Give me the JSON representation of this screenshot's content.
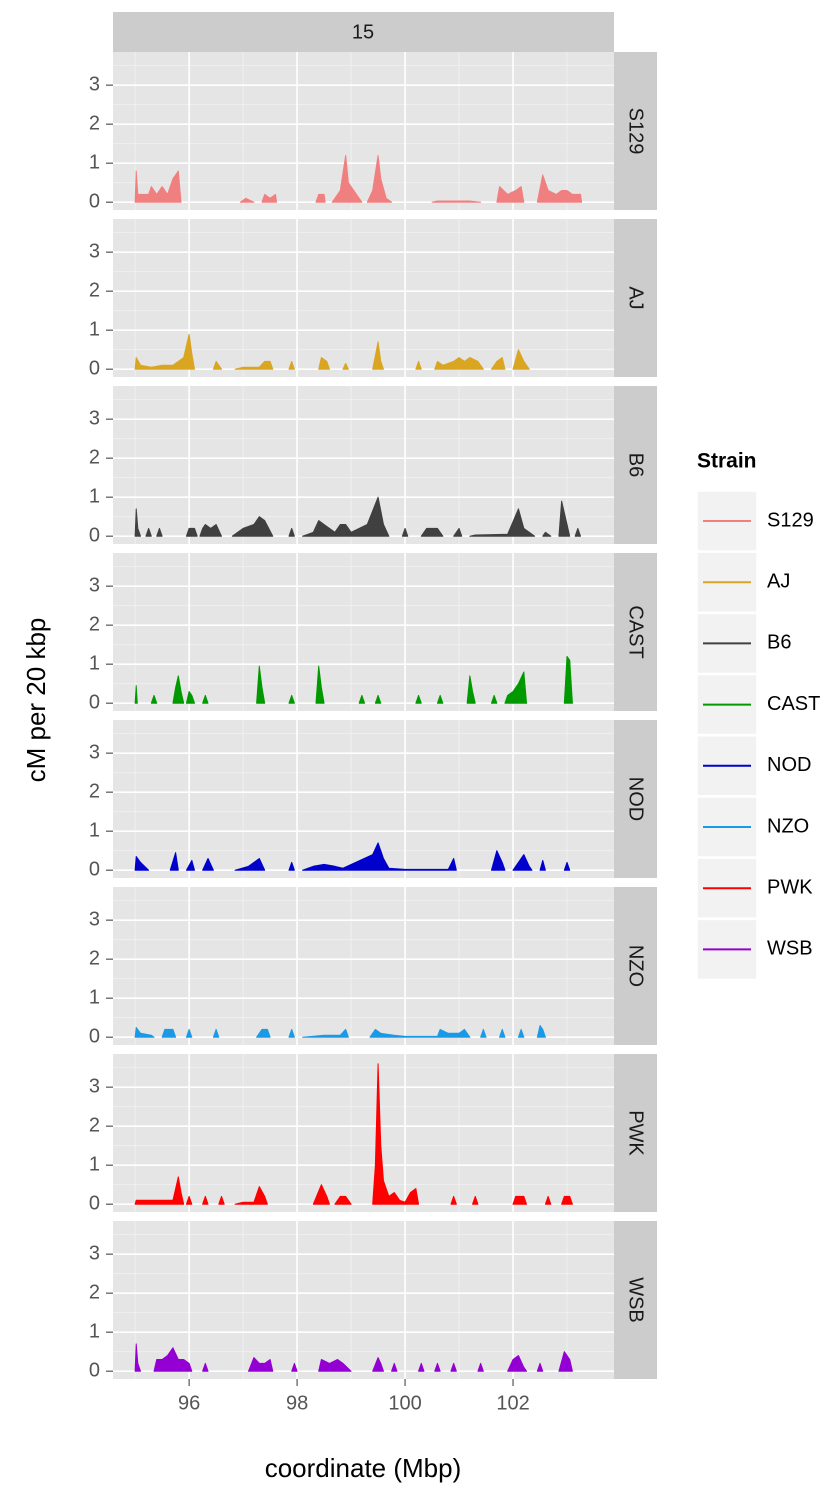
{
  "chart_data": {
    "type": "area",
    "facet_label": "15",
    "xlabel": "coordinate (Mbp)",
    "ylabel": "cM per 20 kbp",
    "legend_title": "Strain",
    "legend_position": "right",
    "grid": true,
    "xlim": [
      94.59,
      103.87
    ],
    "ylim": [
      -0.2,
      3.85
    ],
    "xticks": [
      96,
      98,
      100,
      102
    ],
    "yticks": [
      0,
      1,
      2,
      3
    ],
    "series": [
      {
        "name": "S129",
        "color": "#f08080",
        "x": [
          95.0,
          95.02,
          95.05,
          95.25,
          95.3,
          95.4,
          95.5,
          95.6,
          95.7,
          95.8,
          95.85,
          null,
          96.95,
          97.05,
          97.2,
          null,
          97.35,
          97.4,
          97.5,
          97.6,
          97.62,
          null,
          98.35,
          98.4,
          98.5,
          98.52,
          null,
          98.65,
          98.8,
          98.9,
          98.95,
          99.1,
          99.2,
          null,
          99.3,
          99.4,
          99.5,
          99.55,
          99.65,
          99.75,
          null,
          100.5,
          100.6,
          101.2,
          101.4,
          null,
          101.7,
          101.75,
          101.9,
          102.05,
          102.15,
          102.2,
          null,
          102.45,
          102.55,
          102.65,
          102.8,
          102.9,
          103.0,
          103.1,
          103.25,
          103.27
        ],
        "values": [
          0,
          0.8,
          0.2,
          0.2,
          0.4,
          0.2,
          0.4,
          0.2,
          0.6,
          0.8,
          0,
          null,
          0,
          0.1,
          0,
          null,
          0,
          0.2,
          0.1,
          0.2,
          0,
          null,
          0,
          0.2,
          0.2,
          0,
          null,
          0,
          0.3,
          1.2,
          0.5,
          0.2,
          0,
          null,
          0,
          0.3,
          1.2,
          0.6,
          0.1,
          0,
          null,
          0,
          0.03,
          0.03,
          0,
          null,
          0,
          0.4,
          0.2,
          0.3,
          0.4,
          0,
          null,
          0,
          0.7,
          0.3,
          0.2,
          0.3,
          0.3,
          0.2,
          0.2,
          0
        ]
      },
      {
        "name": "AJ",
        "color": "#daa520",
        "x": [
          95.0,
          95.02,
          95.1,
          95.3,
          95.5,
          95.7,
          95.9,
          96.0,
          96.05,
          96.1,
          null,
          96.45,
          96.5,
          96.6,
          null,
          96.85,
          97.0,
          97.3,
          97.4,
          97.5,
          97.55,
          null,
          97.85,
          97.9,
          97.95,
          null,
          98.4,
          98.45,
          98.55,
          98.6,
          null,
          98.85,
          98.9,
          98.95,
          null,
          99.4,
          99.5,
          99.55,
          99.6,
          null,
          100.2,
          100.25,
          100.3,
          null,
          100.55,
          100.6,
          100.7,
          100.9,
          101.0,
          101.1,
          101.2,
          101.35,
          101.45,
          null,
          101.6,
          101.7,
          101.8,
          101.85,
          null,
          102.0,
          102.1,
          102.2,
          102.3
        ],
        "values": [
          0,
          0.3,
          0.1,
          0.05,
          0.1,
          0.1,
          0.3,
          0.9,
          0.4,
          0,
          null,
          0,
          0.2,
          0,
          null,
          0,
          0.05,
          0.05,
          0.2,
          0.2,
          0,
          null,
          0,
          0.2,
          0,
          null,
          0,
          0.3,
          0.2,
          0,
          null,
          0,
          0.15,
          0,
          null,
          0,
          0.7,
          0.2,
          0,
          null,
          0,
          0.2,
          0,
          null,
          0,
          0.2,
          0.1,
          0.2,
          0.3,
          0.2,
          0.3,
          0.2,
          0,
          null,
          0,
          0.2,
          0.3,
          0,
          null,
          0,
          0.5,
          0.2,
          0
        ]
      },
      {
        "name": "B6",
        "color": "#404040",
        "x": [
          95.0,
          95.02,
          95.05,
          95.1,
          null,
          95.2,
          95.25,
          95.3,
          null,
          95.4,
          95.45,
          95.5,
          null,
          95.95,
          96.0,
          96.1,
          96.15,
          null,
          96.2,
          96.25,
          96.3,
          96.4,
          96.5,
          96.6,
          null,
          96.8,
          97.0,
          97.2,
          97.3,
          97.4,
          97.55,
          null,
          97.85,
          97.9,
          97.95,
          null,
          98.1,
          98.3,
          98.4,
          98.5,
          98.6,
          98.7,
          98.8,
          98.9,
          99.0,
          99.3,
          99.5,
          99.6,
          99.7,
          null,
          99.95,
          100.0,
          100.05,
          null,
          100.3,
          100.4,
          100.6,
          100.7,
          null,
          100.9,
          101.0,
          101.05,
          null,
          101.2,
          101.3,
          101.9,
          102.1,
          102.2,
          102.3,
          102.4,
          null,
          102.55,
          102.6,
          102.7,
          null,
          102.85,
          102.9,
          103.0,
          103.05,
          null,
          103.15,
          103.2,
          103.25
        ],
        "values": [
          0,
          0.7,
          0.2,
          0,
          null,
          0,
          0.2,
          0,
          null,
          0,
          0.2,
          0,
          null,
          0,
          0.2,
          0.2,
          0,
          null,
          0,
          0.2,
          0.3,
          0.2,
          0.3,
          0,
          null,
          0,
          0.2,
          0.3,
          0.5,
          0.4,
          0,
          null,
          0,
          0.2,
          0,
          null,
          0,
          0.1,
          0.4,
          0.3,
          0.2,
          0.1,
          0.3,
          0.3,
          0.1,
          0.3,
          1.0,
          0.3,
          0,
          null,
          0,
          0.2,
          0,
          null,
          0,
          0.2,
          0.2,
          0,
          null,
          0,
          0.2,
          0,
          null,
          0,
          0.03,
          0.05,
          0.7,
          0.2,
          0.1,
          0,
          null,
          0,
          0.1,
          0,
          null,
          0,
          0.9,
          0.3,
          0,
          null,
          0,
          0.2,
          0
        ]
      },
      {
        "name": "CAST",
        "color": "#009900",
        "x": [
          95.0,
          95.02,
          95.04,
          null,
          95.3,
          95.35,
          95.4,
          null,
          95.7,
          95.75,
          95.8,
          95.85,
          95.9,
          null,
          95.95,
          96.0,
          96.05,
          96.1,
          null,
          96.25,
          96.3,
          96.35,
          null,
          97.25,
          97.3,
          97.35,
          97.4,
          null,
          97.85,
          97.9,
          97.95,
          null,
          98.35,
          98.4,
          98.45,
          98.5,
          null,
          99.15,
          99.2,
          99.25,
          null,
          99.45,
          99.5,
          99.55,
          null,
          100.2,
          100.25,
          100.3,
          null,
          100.6,
          100.65,
          100.7,
          null,
          101.15,
          101.2,
          101.25,
          101.3,
          null,
          101.6,
          101.65,
          101.7,
          null,
          101.85,
          101.9,
          102.0,
          102.1,
          102.2,
          102.25,
          null,
          102.95,
          103.0,
          103.05,
          103.1
        ],
        "values": [
          0,
          0.45,
          0,
          null,
          0,
          0.2,
          0,
          null,
          0,
          0.4,
          0.7,
          0.3,
          0,
          null,
          0,
          0.3,
          0.2,
          0,
          null,
          0,
          0.2,
          0,
          null,
          0,
          0.95,
          0.4,
          0,
          null,
          0,
          0.2,
          0,
          null,
          0,
          0.95,
          0.4,
          0,
          null,
          0,
          0.2,
          0,
          null,
          0,
          0.2,
          0,
          null,
          0,
          0.2,
          0,
          null,
          0,
          0.2,
          0,
          null,
          0,
          0.7,
          0.3,
          0,
          null,
          0,
          0.2,
          0,
          null,
          0,
          0.2,
          0.3,
          0.5,
          0.8,
          0,
          null,
          0,
          1.2,
          1.1,
          0
        ]
      },
      {
        "name": "NOD",
        "color": "#0000cc",
        "x": [
          95.0,
          95.02,
          95.1,
          95.25,
          null,
          95.65,
          95.75,
          95.8,
          null,
          95.95,
          96.05,
          96.1,
          null,
          96.25,
          96.35,
          96.45,
          null,
          96.85,
          97.1,
          97.3,
          97.4,
          null,
          97.85,
          97.9,
          97.95,
          null,
          98.1,
          98.3,
          98.5,
          98.7,
          98.85,
          99.4,
          99.5,
          99.6,
          99.7,
          100.0,
          100.8,
          100.9,
          100.95,
          null,
          101.6,
          101.7,
          101.8,
          101.85,
          null,
          102.0,
          102.1,
          102.2,
          102.3,
          102.35,
          null,
          102.5,
          102.55,
          102.6,
          null,
          102.95,
          103.0,
          103.05
        ],
        "values": [
          0,
          0.35,
          0.2,
          0,
          null,
          0,
          0.45,
          0,
          null,
          0,
          0.25,
          0,
          null,
          0,
          0.3,
          0,
          null,
          0,
          0.1,
          0.3,
          0,
          null,
          0,
          0.2,
          0,
          null,
          0,
          0.1,
          0.15,
          0.1,
          0.05,
          0.4,
          0.7,
          0.3,
          0.05,
          0.02,
          0.02,
          0.3,
          0,
          null,
          0,
          0.5,
          0.2,
          0,
          null,
          0,
          0.2,
          0.4,
          0.1,
          0,
          null,
          0,
          0.25,
          0,
          null,
          0,
          0.2,
          0
        ]
      },
      {
        "name": "NZO",
        "color": "#1a9ae6",
        "x": [
          95.0,
          95.02,
          95.1,
          95.3,
          95.35,
          null,
          95.5,
          95.55,
          95.7,
          95.75,
          null,
          95.95,
          96.0,
          96.05,
          null,
          96.45,
          96.5,
          96.55,
          null,
          97.25,
          97.35,
          97.45,
          97.5,
          null,
          97.85,
          97.9,
          97.95,
          null,
          98.1,
          98.5,
          98.8,
          98.9,
          98.95,
          null,
          99.35,
          99.45,
          99.55,
          99.8,
          100.0,
          100.6,
          100.65,
          100.8,
          101.0,
          101.1,
          101.2,
          null,
          101.4,
          101.45,
          101.5,
          null,
          101.75,
          101.8,
          101.85,
          null,
          102.1,
          102.15,
          102.2,
          null,
          102.45,
          102.5,
          102.55,
          102.6
        ],
        "values": [
          0,
          0.25,
          0.1,
          0.05,
          0,
          null,
          0,
          0.2,
          0.2,
          0,
          null,
          0,
          0.2,
          0,
          null,
          0,
          0.2,
          0,
          null,
          0,
          0.2,
          0.2,
          0,
          null,
          0,
          0.2,
          0,
          null,
          0,
          0.05,
          0.05,
          0.2,
          0,
          null,
          0,
          0.2,
          0.1,
          0.05,
          0.02,
          0.02,
          0.2,
          0.1,
          0.1,
          0.2,
          0,
          null,
          0,
          0.2,
          0,
          null,
          0,
          0.2,
          0,
          null,
          0,
          0.2,
          0,
          null,
          0,
          0.3,
          0.2,
          0
        ]
      },
      {
        "name": "PWK",
        "color": "#ff0000",
        "x": [
          95.0,
          95.02,
          95.3,
          95.7,
          95.8,
          95.85,
          95.9,
          null,
          95.95,
          96.0,
          96.05,
          null,
          96.25,
          96.3,
          96.35,
          null,
          96.55,
          96.6,
          96.65,
          null,
          96.85,
          97.0,
          97.2,
          97.3,
          97.4,
          97.45,
          null,
          98.3,
          98.45,
          98.55,
          98.6,
          null,
          98.7,
          98.8,
          98.9,
          99.0,
          null,
          99.4,
          99.45,
          99.5,
          99.55,
          99.6,
          99.7,
          99.8,
          99.9,
          100.0,
          100.1,
          100.2,
          100.25,
          null,
          100.85,
          100.9,
          100.95,
          null,
          101.25,
          101.3,
          101.35,
          null,
          102.0,
          102.05,
          102.2,
          102.25,
          null,
          102.6,
          102.65,
          102.7,
          null,
          102.9,
          102.95,
          103.05,
          103.1
        ],
        "values": [
          0,
          0.1,
          0.1,
          0.1,
          0.7,
          0.3,
          0,
          null,
          0,
          0.2,
          0,
          null,
          0,
          0.2,
          0,
          null,
          0,
          0.2,
          0,
          null,
          0,
          0.05,
          0.05,
          0.45,
          0.2,
          0,
          null,
          0,
          0.5,
          0.2,
          0,
          null,
          0,
          0.2,
          0.2,
          0,
          null,
          0,
          1.0,
          3.6,
          1.5,
          0.6,
          0.2,
          0.3,
          0.1,
          0.05,
          0.3,
          0.4,
          0,
          null,
          0,
          0.2,
          0,
          null,
          0,
          0.2,
          0,
          null,
          0,
          0.2,
          0.2,
          0,
          null,
          0,
          0.2,
          0,
          null,
          0,
          0.2,
          0.2,
          0
        ]
      },
      {
        "name": "WSB",
        "color": "#9400d3",
        "x": [
          95.0,
          95.02,
          95.05,
          95.1,
          null,
          95.35,
          95.4,
          95.5,
          95.6,
          95.7,
          95.8,
          95.9,
          96.0,
          96.05,
          null,
          96.25,
          96.3,
          96.35,
          null,
          97.1,
          97.2,
          97.3,
          97.4,
          97.5,
          97.55,
          null,
          97.9,
          97.95,
          98.0,
          null,
          98.4,
          98.45,
          98.6,
          98.75,
          98.85,
          99.0,
          null,
          99.4,
          99.5,
          99.55,
          99.6,
          null,
          99.75,
          99.8,
          99.85,
          null,
          100.25,
          100.3,
          100.35,
          null,
          100.55,
          100.6,
          100.65,
          null,
          100.85,
          100.9,
          100.95,
          null,
          101.35,
          101.4,
          101.45,
          null,
          101.9,
          102.0,
          102.1,
          102.2,
          102.25,
          null,
          102.45,
          102.5,
          102.55,
          null,
          102.85,
          102.95,
          103.05,
          103.1
        ],
        "values": [
          0,
          0.7,
          0.2,
          0,
          null,
          0,
          0.3,
          0.3,
          0.4,
          0.6,
          0.3,
          0.3,
          0.2,
          0,
          null,
          0,
          0.2,
          0,
          null,
          0,
          0.35,
          0.2,
          0.2,
          0.3,
          0,
          null,
          0,
          0.2,
          0,
          null,
          0,
          0.3,
          0.2,
          0.3,
          0.2,
          0,
          null,
          0,
          0.35,
          0.2,
          0,
          null,
          0,
          0.2,
          0,
          null,
          0,
          0.2,
          0,
          null,
          0,
          0.2,
          0,
          null,
          0,
          0.2,
          0,
          null,
          0,
          0.2,
          0,
          null,
          0,
          0.3,
          0.4,
          0.1,
          0,
          null,
          0,
          0.2,
          0,
          null,
          0,
          0.5,
          0.3,
          0
        ]
      }
    ]
  }
}
